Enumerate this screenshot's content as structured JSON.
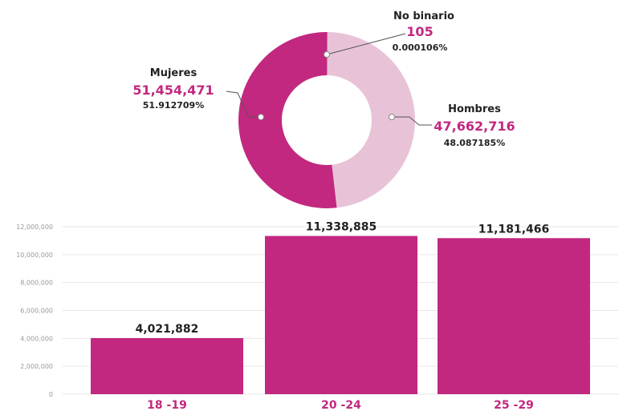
{
  "colors": {
    "accent": "#c2287f",
    "mujeres": "#c2287f",
    "hombres": "#e8c3d8",
    "no_binario": "#d98ab8",
    "grid": "#e6e6e6",
    "axis_text": "#999999",
    "label_text": "#222222"
  },
  "chart_data": [
    {
      "type": "pie",
      "subtype": "donut",
      "slices": [
        {
          "name": "No binario",
          "value": 105,
          "percent": "0.000106%"
        },
        {
          "name": "Hombres",
          "value": 47662716,
          "percent": "48.087185%"
        },
        {
          "name": "Mujeres",
          "value": 51454471,
          "percent": "51.912709%"
        }
      ],
      "value_labels": [
        "105",
        "47,662,716",
        "51,454,471"
      ]
    },
    {
      "type": "bar",
      "categories": [
        "18 -19",
        "20 -24",
        "25 -29"
      ],
      "values": [
        4021882,
        11338885,
        11181466
      ],
      "value_labels": [
        "4,021,882",
        "11,338,885",
        "11,181,466"
      ],
      "ylim": [
        0,
        12000000
      ],
      "yticks": [
        0,
        2000000,
        4000000,
        6000000,
        8000000,
        10000000,
        12000000
      ],
      "ytick_labels": [
        "0",
        "2,000,000",
        "4,000,000",
        "6,000,000",
        "8,000,000",
        "10,000,000",
        "12,000,000"
      ],
      "grid": true
    }
  ]
}
